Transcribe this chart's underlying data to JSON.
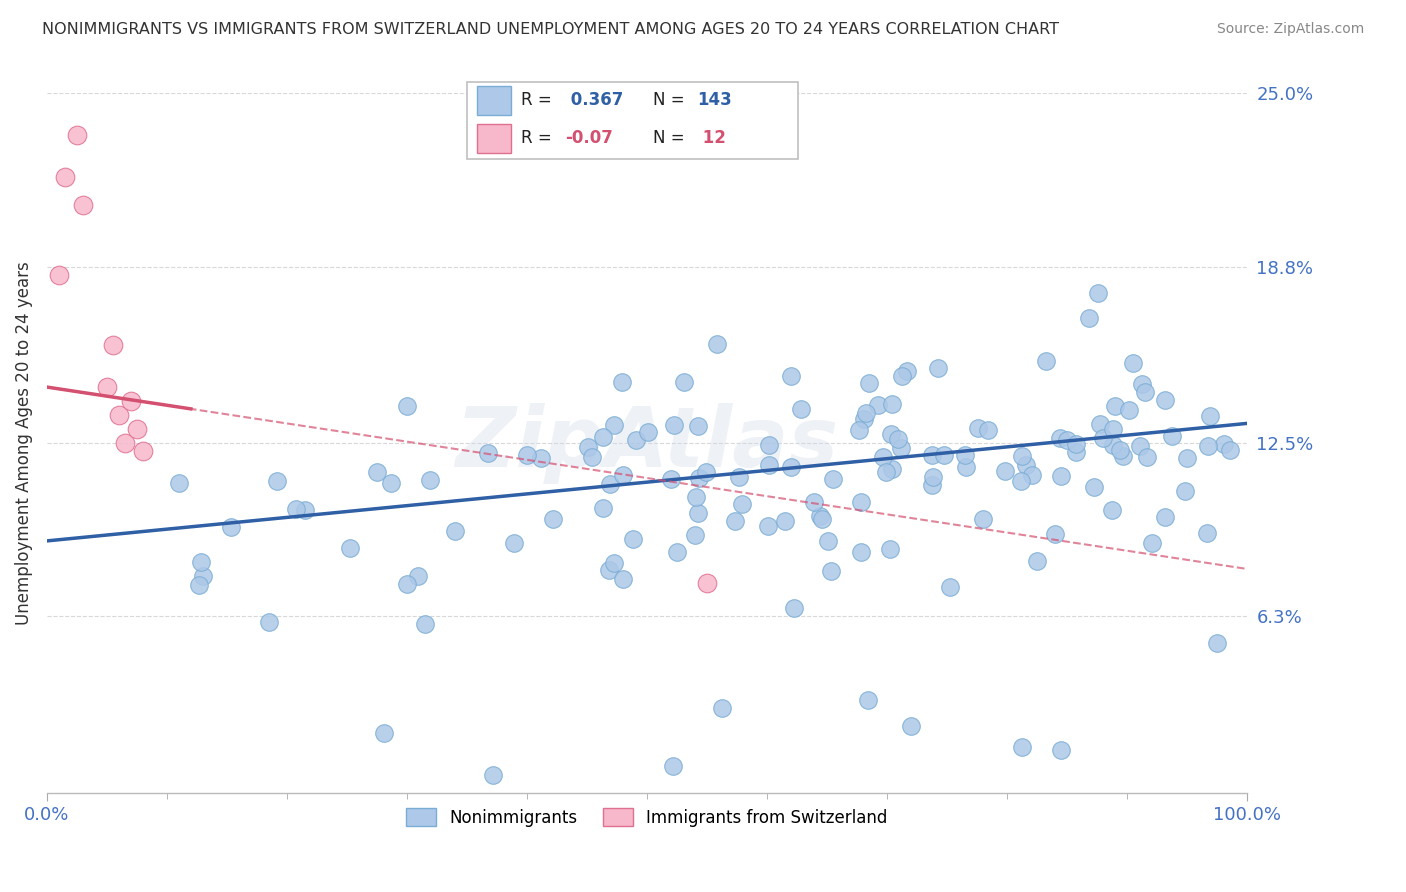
{
  "title": "NONIMMIGRANTS VS IMMIGRANTS FROM SWITZERLAND UNEMPLOYMENT AMONG AGES 20 TO 24 YEARS CORRELATION CHART",
  "source": "Source: ZipAtlas.com",
  "ylabel": "Unemployment Among Ages 20 to 24 years",
  "xlim": [
    0,
    100
  ],
  "ylim": [
    0,
    25
  ],
  "yticks": [
    6.3,
    12.5,
    18.8,
    25.0
  ],
  "xticks": [
    0,
    100
  ],
  "xtick_labels": [
    "0.0%",
    "100.0%"
  ],
  "ytick_labels": [
    "6.3%",
    "12.5%",
    "18.8%",
    "25.0%"
  ],
  "nonimm_R": 0.367,
  "nonimm_N": 143,
  "imm_R": -0.07,
  "imm_N": 12,
  "nonimm_color": "#adc8e8",
  "nonimm_edge_color": "#7aadd4",
  "nonimm_line_color": "#2f5fa5",
  "imm_color": "#f7b8cc",
  "imm_edge_color": "#e07090",
  "imm_line_color": "#d45070",
  "background_color": "#ffffff",
  "grid_color": "#d8d8d8",
  "title_color": "#333333",
  "axis_label_color": "#333333",
  "tick_label_color": "#4472c4",
  "source_color": "#888888",
  "watermark": "ZipAtlas",
  "legend_label_nonimm": "Nonimmigrants",
  "legend_label_imm": "Immigrants from Switzerland",
  "nonimm_trend_x0": 0,
  "nonimm_trend_y0": 9.0,
  "nonimm_trend_x1": 100,
  "nonimm_trend_y1": 13.2,
  "imm_trend_x0": 0,
  "imm_trend_y0": 14.5,
  "imm_trend_x1": 100,
  "imm_trend_y1": 8.0,
  "imm_solid_x0": 0,
  "imm_solid_y0": 14.5,
  "imm_solid_x1": 10,
  "imm_solid_y1": 13.85
}
